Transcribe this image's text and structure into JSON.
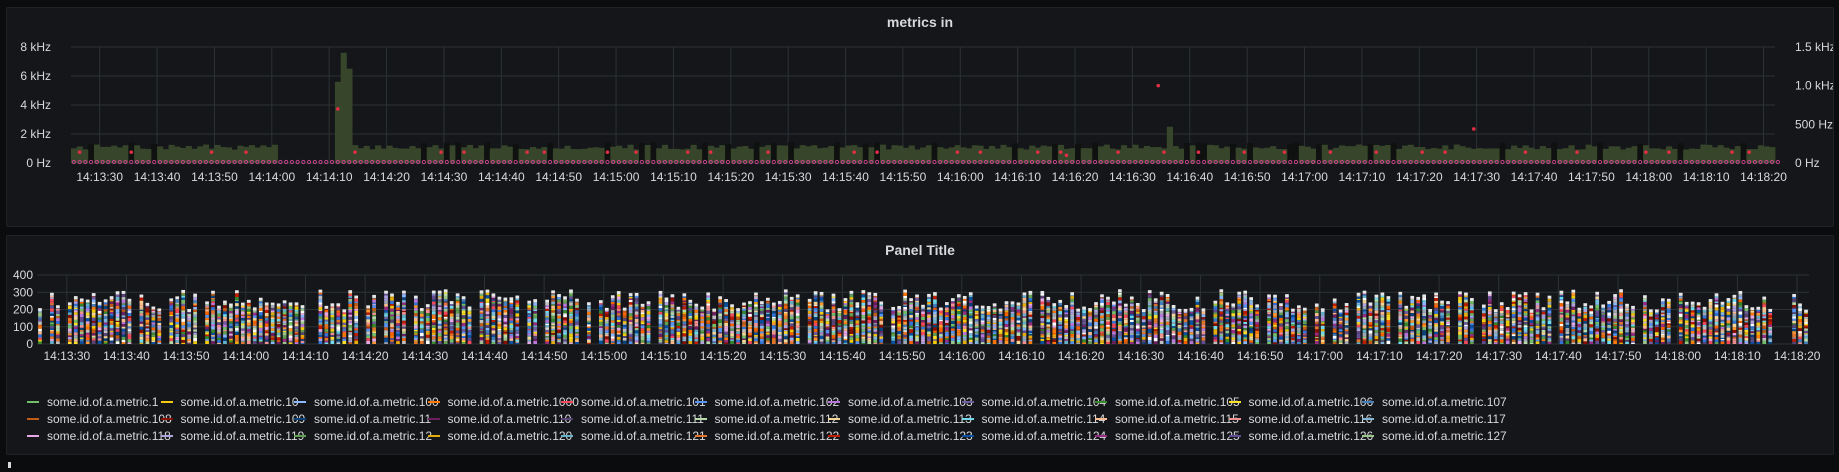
{
  "colors": {
    "background": "#0b0c0e",
    "panel": "#141619",
    "grid": "#2c3235",
    "text": "#d8d9da",
    "bars_dark_green": "#37462a",
    "bars_black": "#0b0c0e",
    "points_red": "#e02f44",
    "points_pink": "#c4448c"
  },
  "panel1": {
    "title": "metrics in",
    "chart_data": {
      "type": "bar",
      "title": "metrics in",
      "x_start": "14:13:25",
      "x_end": "14:18:22",
      "x_ticks": [
        "14:13:30",
        "14:13:40",
        "14:13:50",
        "14:14:00",
        "14:14:10",
        "14:14:20",
        "14:14:30",
        "14:14:40",
        "14:14:50",
        "14:15:00",
        "14:15:10",
        "14:15:20",
        "14:15:30",
        "14:15:40",
        "14:15:50",
        "14:16:00",
        "14:16:10",
        "14:16:20",
        "14:16:30",
        "14:16:40",
        "14:16:50",
        "14:17:00",
        "14:17:10",
        "14:17:20",
        "14:17:30",
        "14:17:40",
        "14:17:50",
        "14:18:00",
        "14:18:10",
        "14:18:20"
      ],
      "y_left_ticks": [
        "0 Hz",
        "2 kHz",
        "4 kHz",
        "6 kHz",
        "8 kHz"
      ],
      "y_left_max": 8000,
      "y_right_ticks": [
        "0 Hz",
        "500 Hz",
        "1.0 kHz",
        "1.5 kHz"
      ],
      "y_right_max": 1500,
      "series": [
        {
          "axis": "left",
          "style": "bars",
          "color": "#37462a",
          "baseline_value": 1100,
          "gap_from": "14:14:01",
          "gap_to": "14:14:10",
          "spikes": [
            {
              "t": "14:14:11",
              "v": 5600
            },
            {
              "t": "14:14:12",
              "v": 7600
            },
            {
              "t": "14:14:13",
              "v": 6500
            },
            {
              "t": "14:16:36",
              "v": 2500
            }
          ]
        },
        {
          "axis": "right",
          "style": "points",
          "color": "#e02f44",
          "times": [
            "14:13:26",
            "14:13:35",
            "14:13:49",
            "14:13:55",
            "14:14:11",
            "14:14:14",
            "14:14:29",
            "14:14:33",
            "14:14:44",
            "14:14:47",
            "14:14:58",
            "14:15:03",
            "14:15:12",
            "14:15:16",
            "14:15:26",
            "14:15:41",
            "14:15:45",
            "14:15:59",
            "14:16:03",
            "14:16:13",
            "14:16:17",
            "14:16:18",
            "14:16:27",
            "14:16:35",
            "14:16:41",
            "14:16:49",
            "14:16:56",
            "14:17:04",
            "14:17:12",
            "14:17:20",
            "14:17:24",
            "14:17:29",
            "14:17:38",
            "14:17:47",
            "14:17:59",
            "14:18:03",
            "14:18:14",
            "14:18:17"
          ],
          "values": [
            140,
            140,
            140,
            140,
            700,
            140,
            140,
            140,
            140,
            140,
            140,
            140,
            140,
            140,
            140,
            140,
            140,
            140,
            140,
            140,
            140,
            100,
            140,
            140,
            140,
            140,
            140,
            140,
            140,
            140,
            140,
            440,
            140,
            140,
            140,
            140,
            140,
            140
          ],
          "special": [
            {
              "t": "14:16:34",
              "v": 1000
            }
          ]
        },
        {
          "axis": "right",
          "style": "points",
          "color": "#c4448c",
          "value": 0,
          "every_seconds": 1
        }
      ]
    }
  },
  "panel2": {
    "title": "Panel Title",
    "chart_data": {
      "type": "bar",
      "stacked": true,
      "title": "Panel Title",
      "x_start": "14:13:25",
      "x_end": "14:18:22",
      "x_ticks": [
        "14:13:30",
        "14:13:40",
        "14:13:50",
        "14:14:00",
        "14:14:10",
        "14:14:20",
        "14:14:30",
        "14:14:40",
        "14:14:50",
        "14:15:00",
        "14:15:10",
        "14:15:20",
        "14:15:30",
        "14:15:40",
        "14:15:50",
        "14:16:00",
        "14:16:10",
        "14:16:20",
        "14:16:30",
        "14:16:40",
        "14:16:50",
        "14:17:00",
        "14:17:10",
        "14:17:20",
        "14:17:30",
        "14:17:40",
        "14:17:50",
        "14:18:00",
        "14:18:10",
        "14:18:20"
      ],
      "y_ticks": [
        "0",
        "100",
        "200",
        "300",
        "400"
      ],
      "y_max": 400,
      "typical_total": 250,
      "total_range": [
        180,
        300
      ],
      "series_count": 1001
    },
    "legend": [
      {
        "name": "some.id.of.a.metric.1",
        "color": "#73bf69"
      },
      {
        "name": "some.id.of.a.metric.10",
        "color": "#f2cc0c"
      },
      {
        "name": "some.id.of.a.metric.100",
        "color": "#8ab8ff"
      },
      {
        "name": "some.id.of.a.metric.1000",
        "color": "#ff780a"
      },
      {
        "name": "some.id.of.a.metric.101",
        "color": "#f2495c"
      },
      {
        "name": "some.id.of.a.metric.102",
        "color": "#5794f2"
      },
      {
        "name": "some.id.of.a.metric.103",
        "color": "#b877d9"
      },
      {
        "name": "some.id.of.a.metric.104",
        "color": "#705da0"
      },
      {
        "name": "some.id.of.a.metric.105",
        "color": "#37872d"
      },
      {
        "name": "some.id.of.a.metric.106",
        "color": "#fade2a"
      },
      {
        "name": "some.id.of.a.metric.107",
        "color": "#447ebc"
      },
      {
        "name": "some.id.of.a.metric.108",
        "color": "#c15c17"
      },
      {
        "name": "some.id.of.a.metric.109",
        "color": "#890f02"
      },
      {
        "name": "some.id.of.a.metric.11",
        "color": "#0a437c"
      },
      {
        "name": "some.id.of.a.metric.110",
        "color": "#6d1f62"
      },
      {
        "name": "some.id.of.a.metric.111",
        "color": "#584477"
      },
      {
        "name": "some.id.of.a.metric.112",
        "color": "#b7dbab"
      },
      {
        "name": "some.id.of.a.metric.113",
        "color": "#f4d598"
      },
      {
        "name": "some.id.of.a.metric.114",
        "color": "#70dbed"
      },
      {
        "name": "some.id.of.a.metric.115",
        "color": "#f9ba8f"
      },
      {
        "name": "some.id.of.a.metric.116",
        "color": "#f29191"
      },
      {
        "name": "some.id.of.a.metric.117",
        "color": "#82b5d8"
      },
      {
        "name": "some.id.of.a.metric.118",
        "color": "#e5a8e2"
      },
      {
        "name": "some.id.of.a.metric.119",
        "color": "#aea2e0"
      },
      {
        "name": "some.id.of.a.metric.12",
        "color": "#629e51"
      },
      {
        "name": "some.id.of.a.metric.120",
        "color": "#e5ac0e"
      },
      {
        "name": "some.id.of.a.metric.121",
        "color": "#64b0c8"
      },
      {
        "name": "some.id.of.a.metric.122",
        "color": "#e0752d"
      },
      {
        "name": "some.id.of.a.metric.123",
        "color": "#bf1b00"
      },
      {
        "name": "some.id.of.a.metric.124",
        "color": "#0a50a1"
      },
      {
        "name": "some.id.of.a.metric.125",
        "color": "#962d82"
      },
      {
        "name": "some.id.of.a.metric.126",
        "color": "#614d93"
      },
      {
        "name": "some.id.of.a.metric.127",
        "color": "#9ac48a"
      }
    ]
  }
}
